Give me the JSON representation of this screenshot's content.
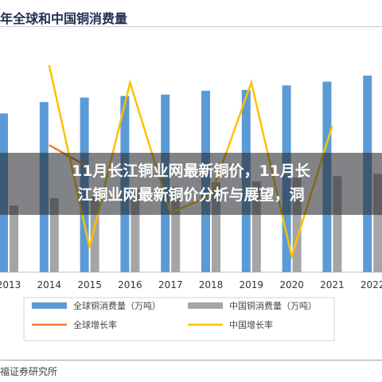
{
  "chart_data": {
    "type": "bar",
    "title": "年全球和中国铜消费量",
    "categories": [
      "2013",
      "2014",
      "2015",
      "2016",
      "2017",
      "2018",
      "2019",
      "2020",
      "2021",
      "2022"
    ],
    "series": [
      {
        "name": "全球铜消费量（万吨）",
        "kind": "bar",
        "color": "#5b9bd5",
        "values": [
          2100,
          2250,
          2310,
          2330,
          2350,
          2400,
          2410,
          2470,
          2520,
          2600
        ]
      },
      {
        "name": "中国铜消费量（万吨）",
        "kind": "bar",
        "color": "#a5a5a5",
        "values": [
          880,
          980,
          1000,
          1100,
          1130,
          1190,
          1200,
          1250,
          1270,
          1300
        ]
      },
      {
        "name": "全球增长率",
        "kind": "line",
        "color": "#ed7d31",
        "values": [
          null,
          1.9,
          0.6,
          null,
          null,
          null,
          null,
          null,
          null,
          null
        ]
      },
      {
        "name": "中国增长率",
        "kind": "line",
        "color": "#ffc000",
        "values": [
          null,
          6.5,
          -4.0,
          5.5,
          -2.0,
          -1.0,
          5.5,
          -4.5,
          3.0,
          null
        ]
      }
    ],
    "legend_position": "bottom",
    "grid": false
  },
  "overlay": {
    "line1": "11月长江铜业网最新铜价，11月长",
    "line2": "江铜业网最新铜价分析与展望，洞"
  },
  "source": "福证券研究所"
}
